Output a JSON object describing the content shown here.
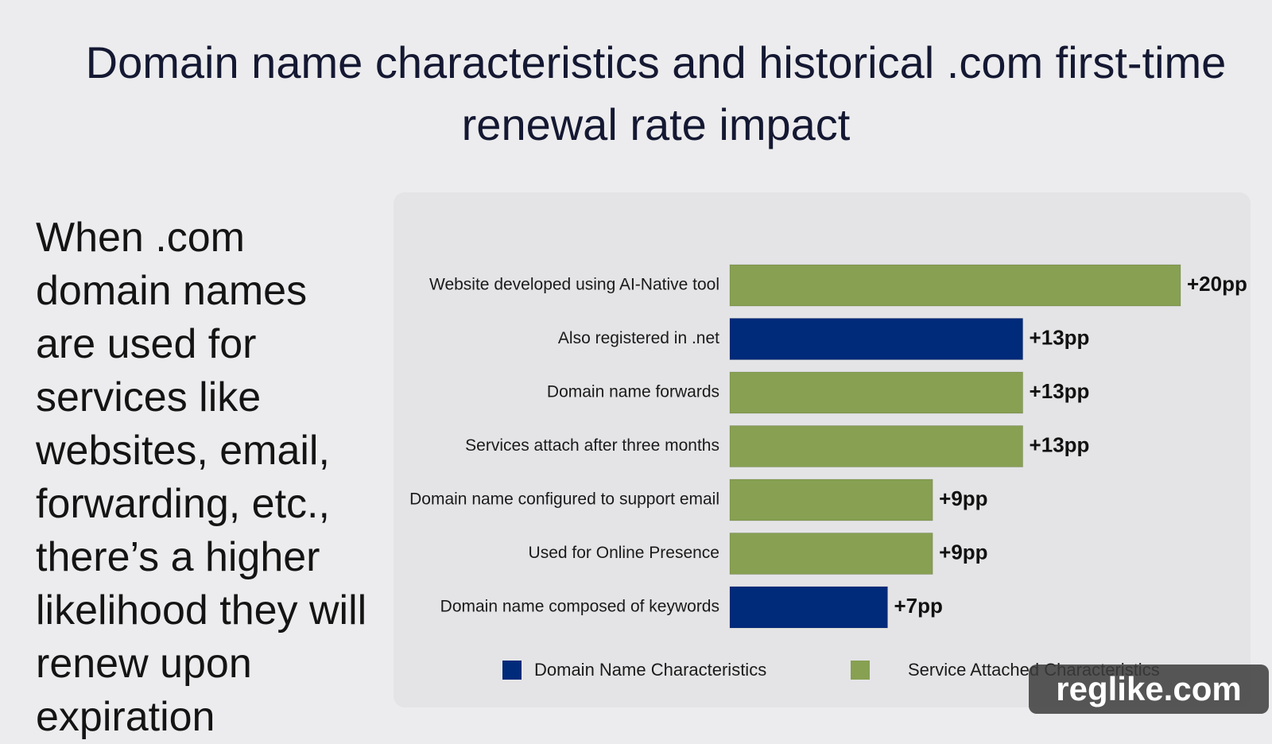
{
  "title": "Domain name characteristics and historical .com first-time renewal rate impact",
  "body_text": "When .com domain names are used for services like websites, email, forwarding, etc., there’s a higher likelihood they will renew upon expiration",
  "watermark": "reglike.com",
  "chart_data": {
    "type": "bar",
    "orientation": "horizontal",
    "categories": [
      "Website developed using AI-Native tool",
      "Also registered in .net",
      "Domain name forwards",
      "Services attach after three months",
      "Domain name configured to support email",
      "Used for Online Presence",
      "Domain name composed of keywords"
    ],
    "series": [
      {
        "name": "Domain Name Characteristics",
        "color": "#002a7a",
        "values": [
          null,
          13,
          null,
          null,
          null,
          null,
          7
        ],
        "value_labels": [
          null,
          "+13pp",
          null,
          null,
          null,
          null,
          "+7pp"
        ]
      },
      {
        "name": "Service Attached Characteristics",
        "color": "#87a052",
        "values": [
          20,
          null,
          13,
          13,
          9,
          9,
          null
        ],
        "value_labels": [
          "+20pp",
          null,
          "+13pp",
          "+13pp",
          "+9pp",
          "+9pp",
          null
        ]
      }
    ],
    "legend": "bottom"
  }
}
